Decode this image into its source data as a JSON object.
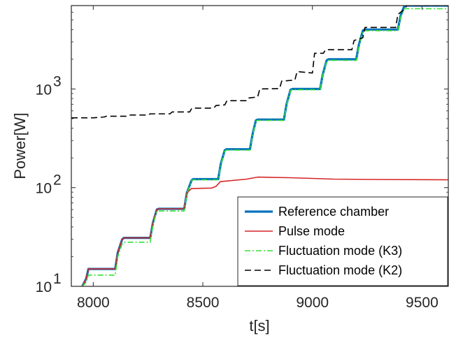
{
  "chart_data": {
    "type": "line",
    "xlabel": "t[s]",
    "ylabel": "Power[W]",
    "xlim": [
      7900,
      9620
    ],
    "ylim": [
      10,
      7000
    ],
    "yscale": "log",
    "grid": false,
    "legend_position": "bottom-right",
    "x_ticks": [
      8000,
      8500,
      9000,
      9500
    ],
    "x_tick_labels": [
      "8000",
      "8500",
      "9000",
      "9500"
    ],
    "y_ticks": [
      10,
      100,
      1000
    ],
    "y_tick_labels": [
      {
        "base": "10",
        "exp": "1"
      },
      {
        "base": "10",
        "exp": "2"
      },
      {
        "base": "10",
        "exp": "3"
      }
    ],
    "series": [
      {
        "name": "Reference chamber",
        "color": "#0072BD",
        "style": "solid",
        "x": [
          7950,
          7968,
          7978,
          8100,
          8112,
          8132,
          8140,
          8260,
          8272,
          8290,
          8298,
          8415,
          8427,
          8448,
          8456,
          8570,
          8582,
          8600,
          8608,
          8715,
          8727,
          8742,
          8750,
          8870,
          8882,
          8900,
          8908,
          9035,
          9047,
          9065,
          9073,
          9200,
          9212,
          9230,
          9238,
          9390,
          9402,
          9420,
          9430,
          9620
        ],
        "y": [
          10,
          12,
          15,
          15,
          22,
          30,
          31,
          31,
          44,
          60,
          61,
          61,
          88,
          118,
          122,
          122,
          175,
          240,
          245,
          245,
          350,
          480,
          490,
          490,
          700,
          980,
          1000,
          1000,
          1400,
          1950,
          2000,
          2000,
          2800,
          3900,
          4000,
          4000,
          5500,
          7000,
          7000,
          7000
        ]
      },
      {
        "name": "Pulse mode",
        "color": "#D62728",
        "style": "solid",
        "x": [
          7950,
          7968,
          7978,
          8100,
          8112,
          8132,
          8140,
          8260,
          8272,
          8290,
          8298,
          8415,
          8427,
          8448,
          8456,
          8540,
          8560,
          8580,
          8700,
          8750,
          8900,
          9100,
          9300,
          9620
        ],
        "y": [
          10,
          12,
          15,
          15,
          22,
          30,
          31,
          31,
          44,
          60,
          61,
          61,
          88,
          98,
          98,
          99,
          103,
          115,
          122,
          128,
          126,
          122,
          121,
          120
        ]
      },
      {
        "name": "Fluctuation mode (K3)",
        "color": "#33E033",
        "style": "dashdot",
        "x": [
          7950,
          7968,
          7978,
          8100,
          8112,
          8132,
          8140,
          8260,
          8272,
          8290,
          8298,
          8415,
          8427,
          8448,
          8456,
          8570,
          8582,
          8600,
          8608,
          8715,
          8727,
          8742,
          8750,
          8870,
          8882,
          8900,
          8908,
          9035,
          9047,
          9065,
          9073,
          9200,
          9212,
          9230,
          9238,
          9390,
          9402,
          9420,
          9430,
          9620
        ],
        "y": [
          10,
          11,
          13,
          13,
          20,
          27,
          28,
          28,
          42,
          57,
          58,
          58,
          86,
          118,
          120,
          120,
          170,
          235,
          240,
          240,
          340,
          470,
          480,
          480,
          680,
          960,
          980,
          980,
          1380,
          1900,
          1950,
          1950,
          2700,
          3800,
          3900,
          3900,
          5300,
          6500,
          6500,
          6500
        ]
      },
      {
        "name": "Fluctuation mode (K2)",
        "color": "#000000",
        "style": "dashed",
        "x": [
          7900,
          8000,
          8050,
          8060,
          8150,
          8160,
          8250,
          8260,
          8350,
          8360,
          8440,
          8450,
          8550,
          8560,
          8600,
          8610,
          8700,
          8710,
          8750,
          8760,
          8850,
          8860,
          8920,
          8930,
          9000,
          9010,
          9050,
          9060,
          9180,
          9190,
          9230,
          9240,
          9380,
          9390,
          9420,
          9430,
          9620
        ],
        "y": [
          510,
          510,
          520,
          530,
          530,
          545,
          545,
          560,
          560,
          585,
          585,
          640,
          640,
          680,
          690,
          760,
          760,
          810,
          830,
          1000,
          1010,
          1200,
          1230,
          1500,
          1450,
          2300,
          2300,
          2500,
          2500,
          3100,
          3300,
          4200,
          4200,
          5700,
          6400,
          7000,
          7000
        ]
      }
    ]
  }
}
